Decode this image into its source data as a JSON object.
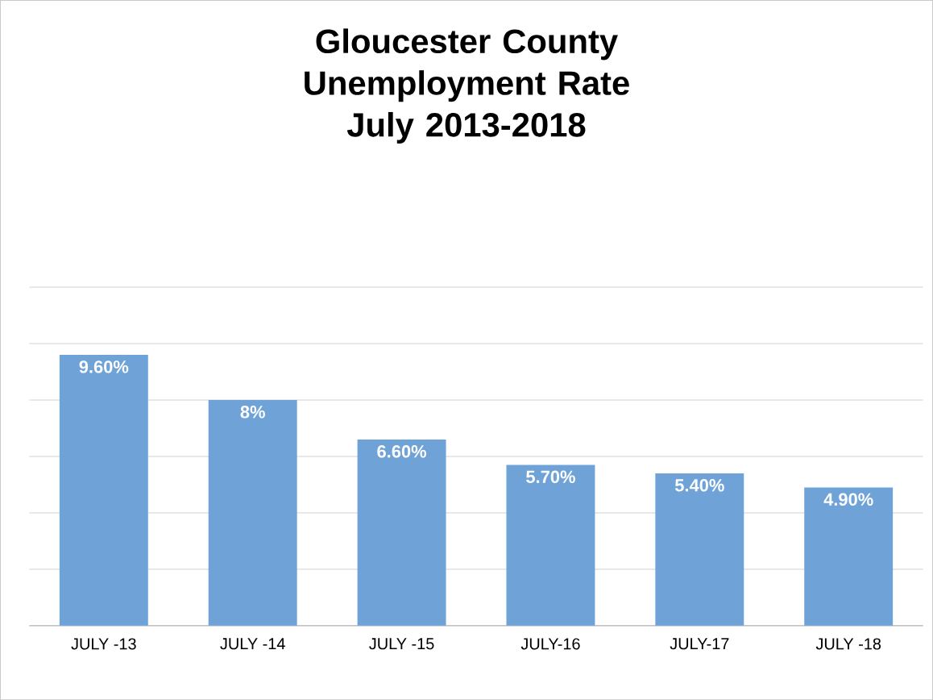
{
  "chart_data": {
    "type": "bar",
    "title": "Gloucester County Unemployment Rate",
    "subtitle": "July 2013-2018",
    "categories": [
      "JULY -13",
      "JULY -14",
      "JULY -15",
      "JULY-16",
      "JULY-17",
      "JULY -18"
    ],
    "values": [
      9.6,
      8,
      6.6,
      5.7,
      5.4,
      4.9
    ],
    "value_labels": [
      "9.60%",
      "8%",
      "6.60%",
      "5.70%",
      "5.40%",
      "4.90%"
    ],
    "color": "#6fa3d8",
    "tick_labels": "x",
    "grid": "y"
  }
}
